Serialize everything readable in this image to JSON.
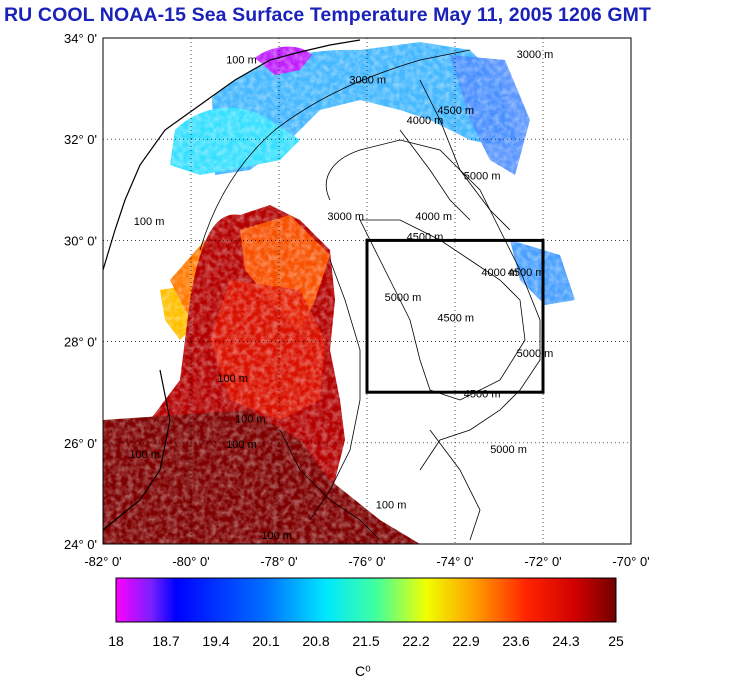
{
  "title": "RU COOL  NOAA-15 Sea Surface Temperature May 11, 2005 1206 GMT",
  "map": {
    "lat_ticks": [
      {
        "value": 34,
        "label": "34° 0'"
      },
      {
        "value": 32,
        "label": "32° 0'"
      },
      {
        "value": 30,
        "label": "30° 0'"
      },
      {
        "value": 28,
        "label": "28° 0'"
      },
      {
        "value": 26,
        "label": "26° 0'"
      },
      {
        "value": 24,
        "label": "24° 0'"
      }
    ],
    "lon_ticks": [
      {
        "value": -82,
        "label": "-82° 0'"
      },
      {
        "value": -80,
        "label": "-80° 0'"
      },
      {
        "value": -78,
        "label": "-78° 0'"
      },
      {
        "value": -76,
        "label": "-76° 0'"
      },
      {
        "value": -74,
        "label": "-74° 0'"
      },
      {
        "value": -72,
        "label": "-72° 0'"
      },
      {
        "value": -70,
        "label": "-70° 0'"
      }
    ],
    "lon_range": [
      -82,
      -70
    ],
    "lat_range": [
      24,
      34
    ],
    "grid": "dotted",
    "study_box": {
      "lon_min": -76,
      "lon_max": -72,
      "lat_min": 27,
      "lat_max": 30
    },
    "contour_labels": [
      {
        "text": "100 m",
        "lon": -79.2,
        "lat": 33.5
      },
      {
        "text": "3000 m",
        "lon": -76.4,
        "lat": 33.1
      },
      {
        "text": "3000 m",
        "lon": -72.6,
        "lat": 33.6
      },
      {
        "text": "4000 m",
        "lon": -75.1,
        "lat": 32.3
      },
      {
        "text": "4500 m",
        "lon": -74.4,
        "lat": 32.5
      },
      {
        "text": "5000 m",
        "lon": -73.8,
        "lat": 31.2
      },
      {
        "text": "100 m",
        "lon": -81.3,
        "lat": 30.3
      },
      {
        "text": "3000 m",
        "lon": -76.9,
        "lat": 30.4
      },
      {
        "text": "4000 m",
        "lon": -74.9,
        "lat": 30.4
      },
      {
        "text": "4500 m",
        "lon": -75.1,
        "lat": 30.0
      },
      {
        "text": "4000 m",
        "lon": -73.4,
        "lat": 29.3
      },
      {
        "text": "4500 m",
        "lon": -72.8,
        "lat": 29.3
      },
      {
        "text": "5000 m",
        "lon": -75.6,
        "lat": 28.8
      },
      {
        "text": "4500 m",
        "lon": -74.4,
        "lat": 28.4
      },
      {
        "text": "5000 m",
        "lon": -72.6,
        "lat": 27.7
      },
      {
        "text": "4500 m",
        "lon": -73.8,
        "lat": 26.9
      },
      {
        "text": "5000 m",
        "lon": -73.2,
        "lat": 25.8
      },
      {
        "text": "100 m",
        "lon": -79.4,
        "lat": 27.2
      },
      {
        "text": "100 m",
        "lon": -79.0,
        "lat": 26.4
      },
      {
        "text": "100 m",
        "lon": -79.2,
        "lat": 25.9
      },
      {
        "text": "100 m",
        "lon": -81.4,
        "lat": 25.7
      },
      {
        "text": "100 m",
        "lon": -78.4,
        "lat": 24.1
      },
      {
        "text": "100 m",
        "lon": -75.8,
        "lat": 24.7
      }
    ]
  },
  "colorbar": {
    "labels": [
      "18",
      "18.7",
      "19.4",
      "20.1",
      "20.8",
      "21.5",
      "22.2",
      "22.9",
      "23.6",
      "24.3",
      "25"
    ],
    "min": 18,
    "max": 25,
    "unit": "C⁰"
  }
}
